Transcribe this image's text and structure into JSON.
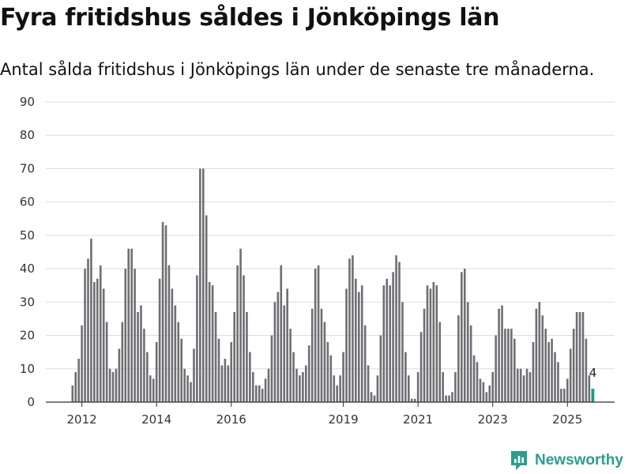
{
  "header": {
    "title": "Fyra fritidshus såldes i Jönköpings län",
    "subtitle": "Antal sålda fritidshus i Jönköpings län under de senaste tre månaderna."
  },
  "brand": {
    "name": "Newsworthy",
    "icon": "newsworthy-logo-icon",
    "color": "#2a9d8f"
  },
  "colors": {
    "bar": "#6e6e73",
    "highlight": "#1f978a",
    "grid": "#dddddd",
    "axis": "#333333"
  },
  "chart_data": {
    "type": "bar",
    "title": "Fyra fritidshus såldes i Jönköpings län",
    "subtitle": "Antal sålda fritidshus i Jönköpings län under de senaste tre månaderna.",
    "xlabel": "",
    "ylabel": "",
    "ylim": [
      0,
      90
    ],
    "yticks": [
      0,
      10,
      20,
      30,
      40,
      50,
      60,
      70,
      80,
      90
    ],
    "xticks": [
      {
        "label": "2012",
        "index": 3
      },
      {
        "label": "2014",
        "index": 27
      },
      {
        "label": "2016",
        "index": 51
      },
      {
        "label": "2019",
        "index": 87
      },
      {
        "label": "2021",
        "index": 111
      },
      {
        "label": "2023",
        "index": 135
      },
      {
        "label": "2025",
        "index": 159
      }
    ],
    "grid": true,
    "highlight_last": true,
    "last_label": "4",
    "values": [
      5,
      9,
      13,
      23,
      40,
      43,
      49,
      36,
      37,
      41,
      34,
      24,
      10,
      9,
      10,
      16,
      24,
      40,
      46,
      46,
      40,
      27,
      29,
      22,
      15,
      8,
      7,
      18,
      37,
      54,
      53,
      41,
      34,
      29,
      24,
      19,
      10,
      8,
      6,
      16,
      38,
      70,
      70,
      56,
      36,
      35,
      27,
      19,
      11,
      13,
      11,
      18,
      27,
      41,
      46,
      38,
      27,
      15,
      9,
      5,
      5,
      4,
      7,
      10,
      20,
      30,
      33,
      41,
      29,
      34,
      22,
      15,
      10,
      8,
      9,
      11,
      17,
      28,
      40,
      41,
      28,
      24,
      18,
      14,
      8,
      5,
      8,
      15,
      34,
      43,
      44,
      37,
      33,
      35,
      23,
      11,
      3,
      2,
      8,
      20,
      35,
      37,
      35,
      39,
      44,
      42,
      30,
      15,
      8,
      1,
      1,
      9,
      21,
      28,
      35,
      34,
      36,
      35,
      24,
      9,
      2,
      2,
      3,
      9,
      26,
      39,
      40,
      30,
      23,
      14,
      12,
      7,
      6,
      3,
      5,
      9,
      20,
      28,
      29,
      22,
      22,
      22,
      19,
      10,
      10,
      8,
      10,
      9,
      18,
      28,
      30,
      26,
      22,
      18,
      19,
      15,
      12,
      4,
      4,
      7,
      16,
      22,
      27,
      27,
      27,
      19,
      8,
      4
    ]
  }
}
